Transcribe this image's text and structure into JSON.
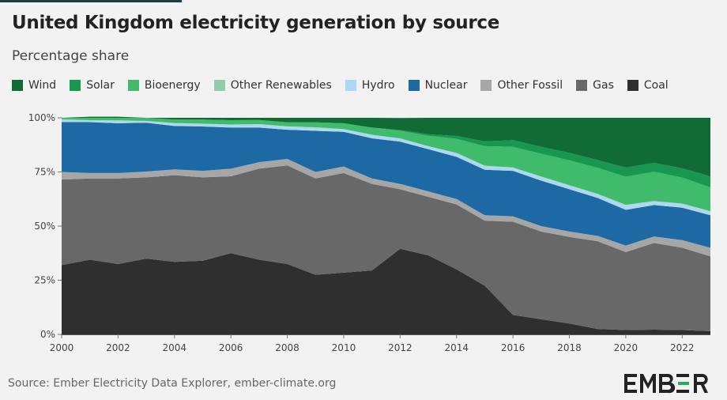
{
  "title": "United Kingdom electricity generation by source",
  "subtitle": "Percentage share",
  "source": "Source: Ember Electricity Data Explorer, ember-climate.org",
  "logo_text": "EMBER",
  "colors": {
    "Coal": "#2f2f2f",
    "Gas": "#686868",
    "Other Fossil": "#a6a6a6",
    "Nuclear": "#1c69a4",
    "Hydro": "#aed8f2",
    "Other Renewables": "#8fcfa5",
    "Bioenergy": "#3fbb6b",
    "Solar": "#179750",
    "Wind": "#106b35",
    "background": "#f2f2f2"
  },
  "chart_data": {
    "type": "area",
    "stacked": true,
    "x": [
      2000,
      2001,
      2002,
      2003,
      2004,
      2005,
      2006,
      2007,
      2008,
      2009,
      2010,
      2011,
      2012,
      2013,
      2014,
      2015,
      2016,
      2017,
      2018,
      2019,
      2020,
      2021,
      2022,
      2023
    ],
    "xticks": [
      2000,
      2002,
      2004,
      2006,
      2008,
      2010,
      2012,
      2014,
      2016,
      2018,
      2020,
      2022
    ],
    "ylim": [
      0,
      100
    ],
    "yticks": [
      0,
      25,
      50,
      75,
      100
    ],
    "ytick_labels": [
      "0%",
      "25%",
      "50%",
      "75%",
      "100%"
    ],
    "legend_position": "top",
    "legend": [
      "Wind",
      "Solar",
      "Bioenergy",
      "Other Renewables",
      "Hydro",
      "Nuclear",
      "Other Fossil",
      "Gas",
      "Coal"
    ],
    "series": [
      {
        "name": "Coal",
        "values": [
          32,
          34.5,
          32.5,
          35,
          33.5,
          34,
          37.5,
          34.5,
          32.5,
          27.5,
          28.5,
          29.5,
          39.5,
          36.5,
          30,
          22.5,
          9,
          7,
          5,
          2.5,
          2,
          2.2,
          2,
          1.5
        ]
      },
      {
        "name": "Gas",
        "values": [
          39.5,
          37.5,
          39.5,
          37.5,
          40,
          38.5,
          35.5,
          42,
          45.5,
          44.5,
          46,
          40,
          27.5,
          27,
          30,
          30,
          43,
          40.5,
          40,
          40.5,
          36,
          40,
          38,
          34.5
        ]
      },
      {
        "name": "Other Fossil",
        "values": [
          3.5,
          2.5,
          2.5,
          2.7,
          2.7,
          3,
          3.5,
          3,
          3,
          3,
          3,
          2.5,
          2.5,
          2.5,
          2.5,
          2.5,
          2.5,
          2.5,
          2.5,
          2.5,
          3,
          3,
          3.5,
          4
        ]
      },
      {
        "name": "Nuclear",
        "values": [
          23,
          23.5,
          23,
          22.5,
          20,
          20.5,
          19,
          16,
          13.5,
          19,
          16,
          18.5,
          19.5,
          19.5,
          19.5,
          21,
          21,
          21,
          19.5,
          17.5,
          16.5,
          14.5,
          15,
          15
        ]
      },
      {
        "name": "Hydro",
        "values": [
          1.2,
          0.8,
          1.2,
          0.8,
          1.3,
          1.2,
          1.3,
          1.5,
          1.5,
          1.5,
          1.2,
          1.6,
          1.4,
          1.3,
          1.7,
          1.8,
          1.5,
          1.8,
          1.8,
          1.8,
          2.2,
          1.8,
          1.8,
          1.8
        ]
      },
      {
        "name": "Other Renewables",
        "values": [
          0.1,
          0.1,
          0.1,
          0.1,
          0.1,
          0.1,
          0.1,
          0.1,
          0.1,
          0.1,
          0.1,
          0.1,
          0.1,
          0.1,
          0.1,
          0.1,
          0.1,
          0.1,
          0.1,
          0.1,
          0.1,
          0.1,
          0.1,
          0.1
        ]
      },
      {
        "name": "Bioenergy",
        "values": [
          0.7,
          1.1,
          1.2,
          1.4,
          1.6,
          1.9,
          2,
          1.9,
          1.8,
          2.3,
          2.7,
          3.3,
          3.5,
          4.8,
          6.5,
          9,
          9.5,
          10.5,
          11.5,
          12,
          13,
          13.5,
          12,
          11
        ]
      },
      {
        "name": "Solar",
        "values": [
          0,
          0,
          0,
          0,
          0,
          0,
          0,
          0,
          0,
          0,
          0,
          0,
          0.4,
          0.7,
          1.3,
          2.2,
          3.1,
          3.2,
          3.4,
          3.6,
          4.2,
          4.1,
          4.3,
          5
        ]
      },
      {
        "name": "Wind",
        "values": [
          0,
          0.5,
          0.5,
          0,
          0.8,
          0.8,
          1.1,
          1,
          2.1,
          2.1,
          2.5,
          4.5,
          5.5,
          7.6,
          8.4,
          10.9,
          10.3,
          13.4,
          16.2,
          19.5,
          23,
          20.8,
          23.3,
          27.1
        ]
      }
    ]
  }
}
